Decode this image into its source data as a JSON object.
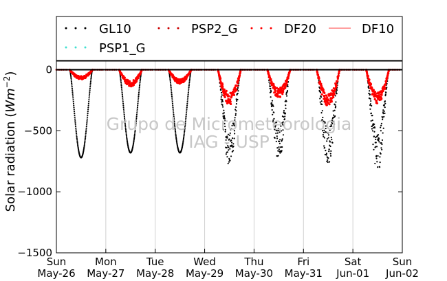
{
  "chart_data": {
    "type": "scatter",
    "title": "",
    "xlabel": "",
    "ylabel": "Solar radiation (Wm⁻²)",
    "ylabel_main": "Solar radiation (",
    "ylabel_unit": "Wm",
    "ylabel_exp": "−2",
    "ylabel_close": ")",
    "ylim": [
      -1500,
      70
    ],
    "y_ticks": [
      {
        "value": 0,
        "label": "0"
      },
      {
        "value": -500,
        "label": "−500"
      },
      {
        "value": -1000,
        "label": "−1000"
      },
      {
        "value": -1500,
        "label": "−1500"
      }
    ],
    "x_range_days": [
      0,
      7
    ],
    "x_ticks": [
      {
        "day": 0,
        "weekday": "Sun",
        "date": "May-26"
      },
      {
        "day": 1,
        "weekday": "Mon",
        "date": "May-27"
      },
      {
        "day": 2,
        "weekday": "Tue",
        "date": "May-28"
      },
      {
        "day": 3,
        "weekday": "Wed",
        "date": "May-29"
      },
      {
        "day": 4,
        "weekday": "Thu",
        "date": "May-30"
      },
      {
        "day": 5,
        "weekday": "Fri",
        "date": "May-31"
      },
      {
        "day": 6,
        "weekday": "Sat",
        "date": "Jun-01"
      },
      {
        "day": 7,
        "weekday": "Sun",
        "date": "Jun-02"
      }
    ],
    "grid": "vertical",
    "legend_placement": "top",
    "watermark": [
      "Grupo de Micrometeorologia",
      "IAG - USP"
    ],
    "colors": {
      "GL10": "#000000",
      "PSP2_G": "#cc0000",
      "DF20": "#ff0000",
      "DF10": "#ff6666",
      "PSP1_G": "#40e0d0"
    },
    "series": [
      {
        "name": "GL10",
        "marker": "dot",
        "peaks": [
          -720,
          -680,
          -680,
          -720,
          -660,
          -700,
          -740
        ]
      },
      {
        "name": "PSP2_G",
        "marker": "dot"
      },
      {
        "name": "DF20",
        "marker": "dot",
        "peaks": [
          -70,
          -120,
          -100,
          -250,
          -200,
          -260,
          -240
        ]
      },
      {
        "name": "DF10",
        "marker": "line"
      },
      {
        "name": "PSP1_G",
        "marker": "dot"
      }
    ]
  }
}
